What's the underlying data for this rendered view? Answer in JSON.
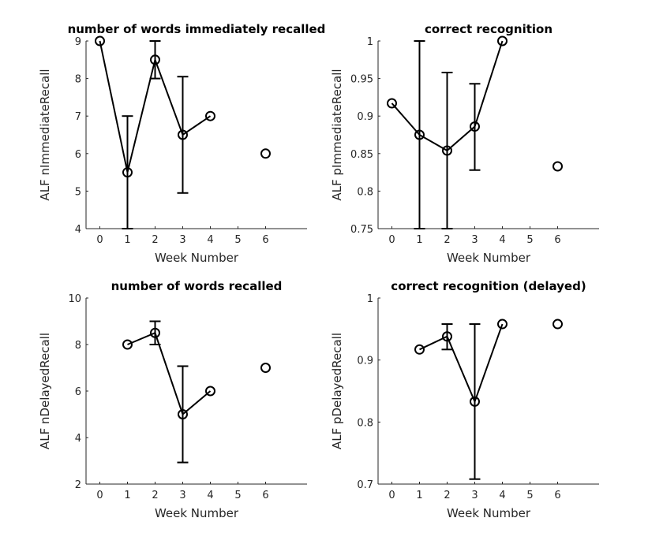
{
  "chart_data": [
    {
      "type": "line",
      "title": "number of words immediately recalled",
      "xlabel": "Week Number",
      "ylabel": "ALF nImmediateRecall",
      "xlim": [
        -0.5,
        7.5
      ],
      "ylim": [
        4,
        9
      ],
      "xticks": [
        0,
        1,
        2,
        3,
        4,
        5,
        6
      ],
      "yticks": [
        4,
        5,
        6,
        7,
        8,
        9
      ],
      "segments": [
        [
          0,
          1,
          2,
          3,
          4
        ],
        [
          5
        ]
      ],
      "points": [
        {
          "x": 0,
          "y": 9
        },
        {
          "x": 1,
          "y": 5.5,
          "lo": 4,
          "hi": 7
        },
        {
          "x": 2,
          "y": 8.5,
          "lo": 8,
          "hi": 9
        },
        {
          "x": 3,
          "y": 6.5,
          "lo": 4.95,
          "hi": 8.05
        },
        {
          "x": 4,
          "y": 7
        },
        {
          "x": 6,
          "y": 6
        }
      ]
    },
    {
      "type": "line",
      "title": "correct recognition",
      "xlabel": "Week Number",
      "ylabel": "ALF pImmediateRecall",
      "xlim": [
        -0.5,
        7.5
      ],
      "ylim": [
        0.75,
        1
      ],
      "xticks": [
        0,
        1,
        2,
        3,
        4,
        5,
        6
      ],
      "yticks": [
        0.75,
        0.8,
        0.85,
        0.9,
        0.95,
        1
      ],
      "ytick_labels": [
        "0.75",
        "0.8",
        "0.85",
        "0.9",
        "0.95",
        "1"
      ],
      "segments": [
        [
          0,
          1,
          2,
          3,
          4
        ],
        [
          5
        ]
      ],
      "points": [
        {
          "x": 0,
          "y": 0.917
        },
        {
          "x": 1,
          "y": 0.875,
          "lo": 0.75,
          "hi": 1.0
        },
        {
          "x": 2,
          "y": 0.854,
          "lo": 0.75,
          "hi": 0.958
        },
        {
          "x": 3,
          "y": 0.886,
          "lo": 0.828,
          "hi": 0.943
        },
        {
          "x": 4,
          "y": 1.0
        },
        {
          "x": 6,
          "y": 0.833
        }
      ]
    },
    {
      "type": "line",
      "title": "number of words recalled",
      "xlabel": "Week Number",
      "ylabel": "ALF nDelayedRecall",
      "xlim": [
        -0.5,
        7.5
      ],
      "ylim": [
        2,
        10
      ],
      "xticks": [
        0,
        1,
        2,
        3,
        4,
        5,
        6
      ],
      "yticks": [
        2,
        4,
        6,
        8,
        10
      ],
      "segments": [
        [
          0,
          1,
          2,
          3
        ],
        [
          4
        ]
      ],
      "points": [
        {
          "x": 1,
          "y": 8
        },
        {
          "x": 2,
          "y": 8.5,
          "lo": 8,
          "hi": 9
        },
        {
          "x": 3,
          "y": 5,
          "lo": 2.93,
          "hi": 7.07
        },
        {
          "x": 4,
          "y": 6
        },
        {
          "x": 6,
          "y": 7
        }
      ]
    },
    {
      "type": "line",
      "title": "correct recognition (delayed)",
      "xlabel": "Week Number",
      "ylabel": "ALF pDelayedRecall",
      "xlim": [
        -0.5,
        7.5
      ],
      "ylim": [
        0.7,
        1
      ],
      "xticks": [
        0,
        1,
        2,
        3,
        4,
        5,
        6
      ],
      "yticks": [
        0.7,
        0.8,
        0.9,
        1
      ],
      "ytick_labels": [
        "0.7",
        "0.8",
        "0.9",
        "1"
      ],
      "segments": [
        [
          0,
          1,
          2,
          3
        ],
        [
          4
        ]
      ],
      "points": [
        {
          "x": 1,
          "y": 0.917
        },
        {
          "x": 2,
          "y": 0.938,
          "lo": 0.917,
          "hi": 0.958
        },
        {
          "x": 3,
          "y": 0.833,
          "lo": 0.708,
          "hi": 0.958
        },
        {
          "x": 4,
          "y": 0.958
        },
        {
          "x": 6,
          "y": 0.958
        }
      ]
    }
  ]
}
